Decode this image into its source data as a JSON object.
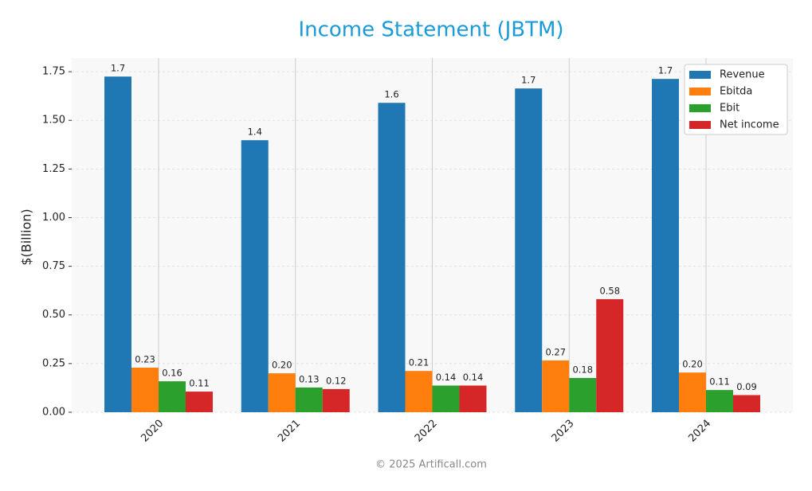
{
  "chart_data": {
    "type": "bar",
    "title": "Income Statement (JBTM)",
    "y_label": "$(Billion)",
    "footer": "© 2025 Artificall.com",
    "categories": [
      "2020",
      "2021",
      "2022",
      "2023",
      "2024"
    ],
    "series": [
      {
        "name": "Revenue",
        "color": "#1f77b4",
        "values": [
          1.725,
          1.398,
          1.59,
          1.664,
          1.713
        ],
        "value_labels": [
          "1.7",
          "1.4",
          "1.6",
          "1.7",
          "1.7"
        ]
      },
      {
        "name": "Ebitda",
        "color": "#ff7f0e",
        "values": [
          0.229,
          0.2,
          0.212,
          0.266,
          0.204
        ],
        "value_labels": [
          "0.23",
          "0.20",
          "0.21",
          "0.27",
          "0.20"
        ]
      },
      {
        "name": "Ebit",
        "color": "#2ca02c",
        "values": [
          0.159,
          0.127,
          0.137,
          0.176,
          0.114
        ],
        "value_labels": [
          "0.16",
          "0.13",
          "0.14",
          "0.18",
          "0.11"
        ]
      },
      {
        "name": "Net income",
        "color": "#d62728",
        "values": [
          0.106,
          0.119,
          0.137,
          0.581,
          0.088
        ],
        "value_labels": [
          "0.11",
          "0.12",
          "0.14",
          "0.58",
          "0.09"
        ]
      }
    ],
    "ylim": [
      0,
      1.82
    ],
    "yticks": [
      {
        "value": 0,
        "label": "0.00"
      },
      {
        "value": 0.25,
        "label": "0.25"
      },
      {
        "value": 0.5,
        "label": "0.50"
      },
      {
        "value": 0.75,
        "label": "0.75"
      },
      {
        "value": 1,
        "label": "1.00"
      },
      {
        "value": 1.25,
        "label": "1.25"
      },
      {
        "value": 1.5,
        "label": "1.50"
      },
      {
        "value": 1.75,
        "label": "1.75"
      }
    ],
    "grid": true,
    "legend": "upper right"
  }
}
